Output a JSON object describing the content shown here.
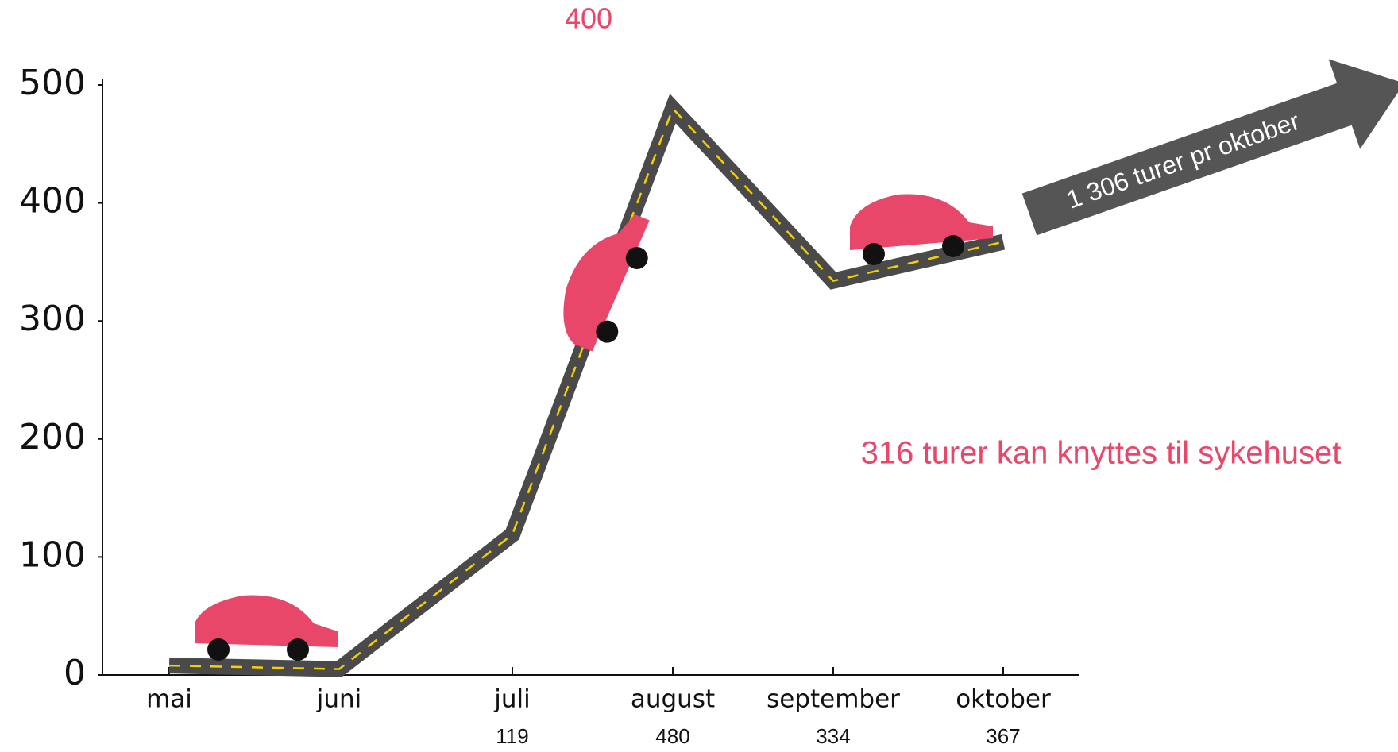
{
  "chart_data": {
    "type": "line",
    "categories": [
      "mai",
      "juni",
      "juli",
      "august",
      "september",
      "oktober"
    ],
    "series": [
      {
        "color": "#4a4a4a",
        "values": [
          8,
          5,
          119,
          480,
          334,
          367
        ],
        "value_labels": [
          null,
          null,
          "119",
          "480",
          "334",
          "367"
        ]
      }
    ],
    "ylim": [
      0,
      500
    ],
    "yticks": [
      0,
      100,
      200,
      300,
      400,
      500
    ],
    "annotations": [
      "400",
      "1 306 turer pr oktober",
      "316 turer kan knyttes til sykehuset"
    ]
  }
}
